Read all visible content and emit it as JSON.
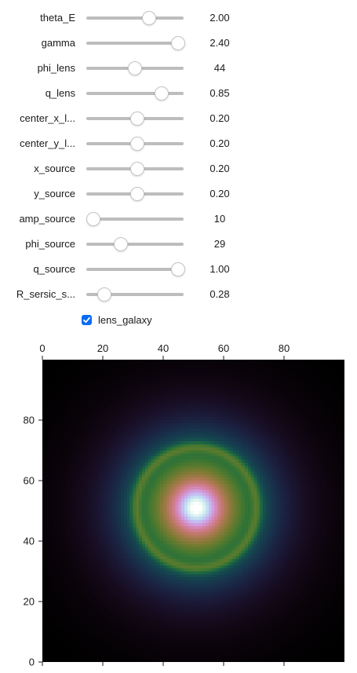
{
  "widgets": {
    "sliders": [
      {
        "label": "theta_E",
        "value_text": "2.00",
        "fraction": 0.66
      },
      {
        "label": "gamma",
        "value_text": "2.40",
        "fraction": 1.0
      },
      {
        "label": "phi_lens",
        "value_text": "44",
        "fraction": 0.49
      },
      {
        "label": "q_lens",
        "value_text": "0.85",
        "fraction": 0.81
      },
      {
        "label": "center_x_l...",
        "value_text": "0.20",
        "fraction": 0.52
      },
      {
        "label": "center_y_l...",
        "value_text": "0.20",
        "fraction": 0.52
      },
      {
        "label": "x_source",
        "value_text": "0.20",
        "fraction": 0.52
      },
      {
        "label": "y_source",
        "value_text": "0.20",
        "fraction": 0.52
      },
      {
        "label": "amp_source",
        "value_text": "10",
        "fraction": 0.0
      },
      {
        "label": "phi_source",
        "value_text": "29",
        "fraction": 0.32
      },
      {
        "label": "q_source",
        "value_text": "1.00",
        "fraction": 1.0
      },
      {
        "label": "R_sersic_s...",
        "value_text": "0.28",
        "fraction": 0.13
      }
    ],
    "checkbox": {
      "label": "lens_galaxy",
      "checked": true
    },
    "accent_color": "#0a6cf5",
    "track_color": "#bdbdbd"
  },
  "chart_data": {
    "type": "heatmap",
    "colormap": "cubehelix",
    "x_axis": {
      "position": "top",
      "range": [
        0,
        100
      ],
      "ticks": [
        0,
        20,
        40,
        60,
        80
      ]
    },
    "y_axis": {
      "position": "left",
      "range": [
        0,
        100
      ],
      "ticks": [
        0,
        20,
        40,
        60,
        80
      ]
    },
    "grid": false,
    "image": {
      "resolution": 100,
      "lens_center": [
        51,
        51
      ],
      "ring_radius": 20,
      "ring_width": 1.2,
      "halo_scale": 21,
      "core_width": 3.5
    }
  }
}
